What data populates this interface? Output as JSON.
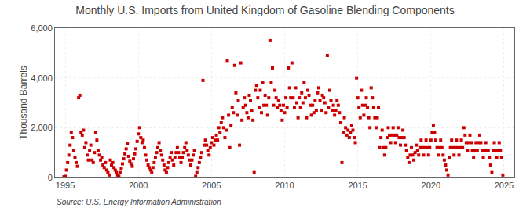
{
  "chart_data": {
    "type": "scatter",
    "title": "Monthly U.S. Imports from United Kingdom of Gasoline Blending Components",
    "ylabel": "Thousand Barrels",
    "annotations": [
      "Source: U.S. Energy Information Administration"
    ],
    "color": "#cc0000",
    "marker": "square",
    "grid": true,
    "xlim": [
      1994.3,
      2025.7
    ],
    "xticks": [
      1995,
      2000,
      2005,
      2010,
      2015,
      2020,
      2025
    ],
    "ylim": [
      0,
      6000
    ],
    "yticks": [
      0,
      {
        "value": 2000,
        "label": "2,000"
      },
      {
        "value": 4000,
        "label": "4,000"
      },
      {
        "value": 6000,
        "label": "6,000"
      }
    ],
    "x": [
      1994.917,
      1995.0,
      1995.083,
      1995.167,
      1995.25,
      1995.333,
      1995.417,
      1995.5,
      1995.583,
      1995.667,
      1995.75,
      1995.833,
      1995.917,
      1996.0,
      1996.083,
      1996.167,
      1996.25,
      1996.333,
      1996.417,
      1996.5,
      1996.583,
      1996.667,
      1996.75,
      1996.833,
      1996.917,
      1997.0,
      1997.083,
      1997.167,
      1997.25,
      1997.333,
      1997.417,
      1997.5,
      1997.583,
      1997.667,
      1997.75,
      1997.833,
      1997.917,
      1998.0,
      1998.083,
      1998.167,
      1998.25,
      1998.333,
      1998.417,
      1998.5,
      1998.583,
      1998.667,
      1998.75,
      1998.833,
      1998.917,
      1999.0,
      1999.083,
      1999.167,
      1999.25,
      1999.333,
      1999.417,
      1999.5,
      1999.583,
      1999.667,
      1999.75,
      1999.833,
      1999.917,
      2000.0,
      2000.083,
      2000.167,
      2000.25,
      2000.333,
      2000.417,
      2000.5,
      2000.583,
      2000.667,
      2000.75,
      2000.833,
      2000.917,
      2001.0,
      2001.083,
      2001.167,
      2001.25,
      2001.333,
      2001.417,
      2001.5,
      2001.583,
      2001.667,
      2001.75,
      2001.833,
      2001.917,
      2002.0,
      2002.083,
      2002.167,
      2002.25,
      2002.333,
      2002.417,
      2002.5,
      2002.583,
      2002.667,
      2002.75,
      2002.833,
      2002.917,
      2003.0,
      2003.083,
      2003.167,
      2003.25,
      2003.333,
      2003.417,
      2003.5,
      2003.583,
      2003.667,
      2003.75,
      2003.833,
      2003.917,
      2004.0,
      2004.083,
      2004.167,
      2004.25,
      2004.333,
      2004.417,
      2004.5,
      2004.583,
      2004.667,
      2004.75,
      2004.833,
      2004.917,
      2005.0,
      2005.083,
      2005.167,
      2005.25,
      2005.333,
      2005.417,
      2005.5,
      2005.583,
      2005.667,
      2005.75,
      2005.833,
      2005.917,
      2006.0,
      2006.083,
      2006.167,
      2006.25,
      2006.333,
      2006.417,
      2006.5,
      2006.583,
      2006.667,
      2006.75,
      2006.833,
      2006.917,
      2007.0,
      2007.083,
      2007.167,
      2007.25,
      2007.333,
      2007.417,
      2007.5,
      2007.583,
      2007.667,
      2007.75,
      2007.833,
      2007.917,
      2008.0,
      2008.083,
      2008.167,
      2008.25,
      2008.333,
      2008.417,
      2008.5,
      2008.583,
      2008.667,
      2008.75,
      2008.833,
      2008.917,
      2009.0,
      2009.083,
      2009.167,
      2009.25,
      2009.333,
      2009.417,
      2009.5,
      2009.583,
      2009.667,
      2009.75,
      2009.833,
      2009.917,
      2010.0,
      2010.083,
      2010.167,
      2010.25,
      2010.333,
      2010.417,
      2010.5,
      2010.583,
      2010.667,
      2010.75,
      2010.833,
      2010.917,
      2011.0,
      2011.083,
      2011.167,
      2011.25,
      2011.333,
      2011.417,
      2011.5,
      2011.583,
      2011.667,
      2011.75,
      2011.833,
      2011.917,
      2012.0,
      2012.083,
      2012.167,
      2012.25,
      2012.333,
      2012.417,
      2012.5,
      2012.583,
      2012.667,
      2012.75,
      2012.833,
      2012.917,
      2013.0,
      2013.083,
      2013.167,
      2013.25,
      2013.333,
      2013.417,
      2013.5,
      2013.583,
      2013.667,
      2013.75,
      2013.833,
      2013.917,
      2014.0,
      2014.083,
      2014.167,
      2014.25,
      2014.333,
      2014.417,
      2014.5,
      2014.583,
      2014.667,
      2014.75,
      2014.833,
      2014.917,
      2015.0,
      2015.083,
      2015.167,
      2015.25,
      2015.333,
      2015.417,
      2015.5,
      2015.583,
      2015.667,
      2015.75,
      2015.833,
      2015.917,
      2016.0,
      2016.083,
      2016.167,
      2016.25,
      2016.333,
      2016.417,
      2016.5,
      2016.583,
      2016.667,
      2016.75,
      2016.833,
      2016.917,
      2017.0,
      2017.083,
      2017.167,
      2017.25,
      2017.333,
      2017.417,
      2017.5,
      2017.583,
      2017.667,
      2017.75,
      2017.833,
      2017.917,
      2018.0,
      2018.083,
      2018.167,
      2018.25,
      2018.333,
      2018.417,
      2018.5,
      2018.583,
      2018.667,
      2018.75,
      2018.833,
      2018.917,
      2019.0,
      2019.083,
      2019.167,
      2019.25,
      2019.333,
      2019.417,
      2019.5,
      2019.583,
      2019.667,
      2019.75,
      2019.833,
      2019.917,
      2020.0,
      2020.083,
      2020.167,
      2020.25,
      2020.333,
      2020.417,
      2020.5,
      2020.583,
      2020.667,
      2020.75,
      2020.833,
      2020.917,
      2021.0,
      2021.083,
      2021.167,
      2021.25,
      2021.333,
      2021.417,
      2021.5,
      2021.583,
      2021.667,
      2021.75,
      2021.833,
      2021.917,
      2022.0,
      2022.083,
      2022.167,
      2022.25,
      2022.333,
      2022.417,
      2022.5,
      2022.583,
      2022.667,
      2022.75,
      2022.833,
      2022.917,
      2023.0,
      2023.083,
      2023.167,
      2023.25,
      2023.333,
      2023.417,
      2023.5,
      2023.583,
      2023.667,
      2023.75,
      2023.833,
      2023.917,
      2024.0,
      2024.083,
      2024.167,
      2024.25,
      2024.333,
      2024.417,
      2024.5,
      2024.583,
      2024.667,
      2024.75,
      2024.833,
      2024.917
    ],
    "values": [
      30,
      50,
      300,
      600,
      900,
      1300,
      1800,
      1600,
      1100,
      800,
      600,
      450,
      3200,
      3300,
      1800,
      1700,
      1900,
      1200,
      1400,
      900,
      700,
      1100,
      1300,
      700,
      600,
      1000,
      1800,
      1500,
      1100,
      900,
      700,
      800,
      500,
      400,
      600,
      300,
      200,
      100,
      700,
      500,
      600,
      400,
      300,
      200,
      100,
      50,
      200,
      350,
      550,
      750,
      950,
      1150,
      1350,
      850,
      650,
      550,
      450,
      750,
      950,
      1150,
      1450,
      1750,
      2000,
      1600,
      1400,
      1500,
      1200,
      900,
      700,
      500,
      400,
      300,
      200,
      400,
      600,
      800,
      1000,
      1200,
      1400,
      1100,
      900,
      700,
      500,
      300,
      200,
      400,
      600,
      800,
      1000,
      700,
      500,
      800,
      1000,
      1200,
      1000,
      800,
      600,
      800,
      1000,
      1200,
      1400,
      1100,
      900,
      700,
      500,
      700,
      900,
      1100,
      50,
      200,
      400,
      600,
      800,
      1000,
      3900,
      1300,
      1500,
      1300,
      1100,
      900,
      1200,
      1400,
      1600,
      1300,
      1500,
      1700,
      1500,
      2000,
      1800,
      2200,
      2400,
      2000,
      1600,
      1900,
      4700,
      2500,
      1200,
      2100,
      2800,
      2600,
      4500,
      3400,
      2500,
      3100,
      1300,
      4600,
      2300,
      2800,
      3200,
      2900,
      2600,
      2400,
      3300,
      3100,
      2700,
      2300,
      200,
      3500,
      3700,
      3200,
      2800,
      3500,
      2600,
      3800,
      2900,
      3300,
      2900,
      2500,
      3200,
      5500,
      3800,
      4400,
      2900,
      3500,
      3200,
      2800,
      3100,
      2900,
      2700,
      2300,
      2900,
      2600,
      3200,
      2800,
      4400,
      3600,
      3200,
      4600,
      3200,
      2800,
      3600,
      3000,
      2400,
      3200,
      2800,
      3400,
      3000,
      3800,
      3200,
      2400,
      3500,
      3300,
      2900,
      2500,
      2900,
      2600,
      3100,
      2700,
      3400,
      3600,
      3100,
      2700,
      3300,
      3200,
      3000,
      2600,
      4900,
      2800,
      3500,
      3100,
      2700,
      2900,
      2500,
      2700,
      3100,
      2900,
      2600,
      2200,
      600,
      1800,
      2400,
      2000,
      1700,
      1900,
      1600,
      1800,
      2100,
      1900,
      1600,
      1400,
      4000,
      3200,
      2800,
      2400,
      3500,
      2900,
      2500,
      2900,
      3200,
      2800,
      2400,
      2000,
      3600,
      3200,
      2800,
      2400,
      2000,
      2400,
      2800,
      1200,
      1600,
      1900,
      1200,
      900,
      1200,
      1600,
      2000,
      1700,
      1400,
      1700,
      2000,
      1700,
      1400,
      1700,
      2000,
      1600,
      1300,
      1600,
      1900,
      1600,
      1300,
      1100,
      800,
      600,
      900,
      1200,
      900,
      700,
      1000,
      1300,
      1100,
      900,
      1200,
      1500,
      1200,
      900,
      1200,
      1500,
      1200,
      900,
      1200,
      1500,
      1800,
      2100,
      1800,
      1500,
      1200,
      900,
      1200,
      1500,
      1200,
      900,
      700,
      500,
      300,
      100,
      800,
      1200,
      1500,
      1200,
      900,
      1200,
      1500,
      1200,
      900,
      1200,
      1500,
      1200,
      2000,
      1700,
      1400,
      1100,
      1400,
      1700,
      1400,
      1100,
      800,
      1100,
      1400,
      1100,
      1400,
      1700,
      1400,
      1100,
      800,
      1100,
      1400,
      1100,
      1100,
      800,
      500,
      200,
      1100,
      1400,
      1100,
      800,
      1100,
      1400,
      1100,
      800,
      100
    ]
  }
}
